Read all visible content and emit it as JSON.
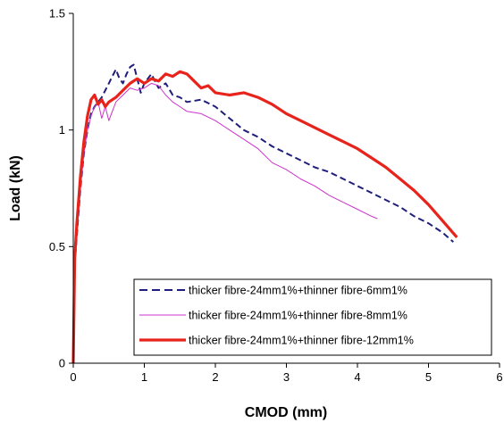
{
  "chart_data": {
    "type": "line",
    "title": "",
    "xlabel": "CMOD (mm)",
    "ylabel": "Load (kN)",
    "xlim": [
      0,
      6
    ],
    "ylim": [
      0,
      1.5
    ],
    "xticks": [
      0,
      1,
      2,
      3,
      4,
      5,
      6
    ],
    "yticks": [
      0,
      0.5,
      1,
      1.5
    ],
    "ytick_labels": [
      "0",
      "0.5",
      "1",
      "1.5"
    ],
    "grid": false,
    "legend_position": "bottom-right",
    "series": [
      {
        "name": "thicker fibre-24mm1%+thinner fibre-6mm1%",
        "color": "#1f1f7a",
        "style": "dashed",
        "x": [
          0,
          0.02,
          0.05,
          0.1,
          0.15,
          0.2,
          0.25,
          0.3,
          0.35,
          0.4,
          0.5,
          0.55,
          0.6,
          0.65,
          0.7,
          0.75,
          0.8,
          0.85,
          0.9,
          0.95,
          1.0,
          1.1,
          1.2,
          1.3,
          1.4,
          1.5,
          1.6,
          1.8,
          2.0,
          2.2,
          2.4,
          2.6,
          2.8,
          3.0,
          3.2,
          3.4,
          3.6,
          3.8,
          4.0,
          4.2,
          4.4,
          4.6,
          4.8,
          5.0,
          5.2,
          5.35
        ],
        "y": [
          0,
          0.42,
          0.55,
          0.75,
          0.9,
          1.0,
          1.07,
          1.1,
          1.12,
          1.14,
          1.2,
          1.23,
          1.26,
          1.22,
          1.2,
          1.24,
          1.27,
          1.28,
          1.22,
          1.16,
          1.2,
          1.24,
          1.18,
          1.2,
          1.15,
          1.14,
          1.12,
          1.13,
          1.1,
          1.05,
          1.0,
          0.97,
          0.93,
          0.9,
          0.87,
          0.84,
          0.82,
          0.79,
          0.76,
          0.73,
          0.7,
          0.67,
          0.63,
          0.6,
          0.56,
          0.52
        ]
      },
      {
        "name": "thicker fibre-24mm1%+thinner fibre-8mm1%",
        "color": "#cc33cc",
        "style": "solid",
        "x": [
          0,
          0.02,
          0.05,
          0.1,
          0.15,
          0.2,
          0.25,
          0.3,
          0.35,
          0.4,
          0.45,
          0.5,
          0.55,
          0.6,
          0.7,
          0.8,
          0.9,
          1.0,
          1.1,
          1.2,
          1.3,
          1.4,
          1.5,
          1.6,
          1.8,
          2.0,
          2.2,
          2.4,
          2.6,
          2.8,
          3.0,
          3.2,
          3.4,
          3.6,
          3.8,
          4.0,
          4.2,
          4.28
        ],
        "y": [
          0,
          0.4,
          0.55,
          0.75,
          0.9,
          1.0,
          1.06,
          1.1,
          1.12,
          1.05,
          1.1,
          1.04,
          1.08,
          1.12,
          1.15,
          1.18,
          1.17,
          1.18,
          1.2,
          1.19,
          1.15,
          1.12,
          1.1,
          1.08,
          1.07,
          1.04,
          1.0,
          0.96,
          0.92,
          0.86,
          0.83,
          0.79,
          0.76,
          0.72,
          0.69,
          0.66,
          0.63,
          0.62
        ]
      },
      {
        "name": "thicker fibre-24mm1%+thinner fibre-12mm1%",
        "color": "#e8231b",
        "style": "solid-thick",
        "x": [
          0,
          0.02,
          0.05,
          0.1,
          0.15,
          0.2,
          0.25,
          0.3,
          0.35,
          0.4,
          0.45,
          0.5,
          0.6,
          0.7,
          0.8,
          0.9,
          1.0,
          1.1,
          1.2,
          1.3,
          1.4,
          1.5,
          1.6,
          1.7,
          1.8,
          1.9,
          2.0,
          2.2,
          2.4,
          2.6,
          2.8,
          3.0,
          3.2,
          3.4,
          3.6,
          3.8,
          4.0,
          4.2,
          4.4,
          4.6,
          4.8,
          5.0,
          5.2,
          5.4
        ],
        "y": [
          0,
          0.45,
          0.6,
          0.8,
          0.95,
          1.06,
          1.13,
          1.15,
          1.11,
          1.13,
          1.1,
          1.12,
          1.14,
          1.17,
          1.2,
          1.22,
          1.2,
          1.22,
          1.21,
          1.24,
          1.23,
          1.25,
          1.24,
          1.21,
          1.18,
          1.19,
          1.16,
          1.15,
          1.16,
          1.14,
          1.11,
          1.07,
          1.04,
          1.01,
          0.98,
          0.95,
          0.92,
          0.88,
          0.84,
          0.79,
          0.74,
          0.68,
          0.61,
          0.54
        ]
      }
    ]
  }
}
